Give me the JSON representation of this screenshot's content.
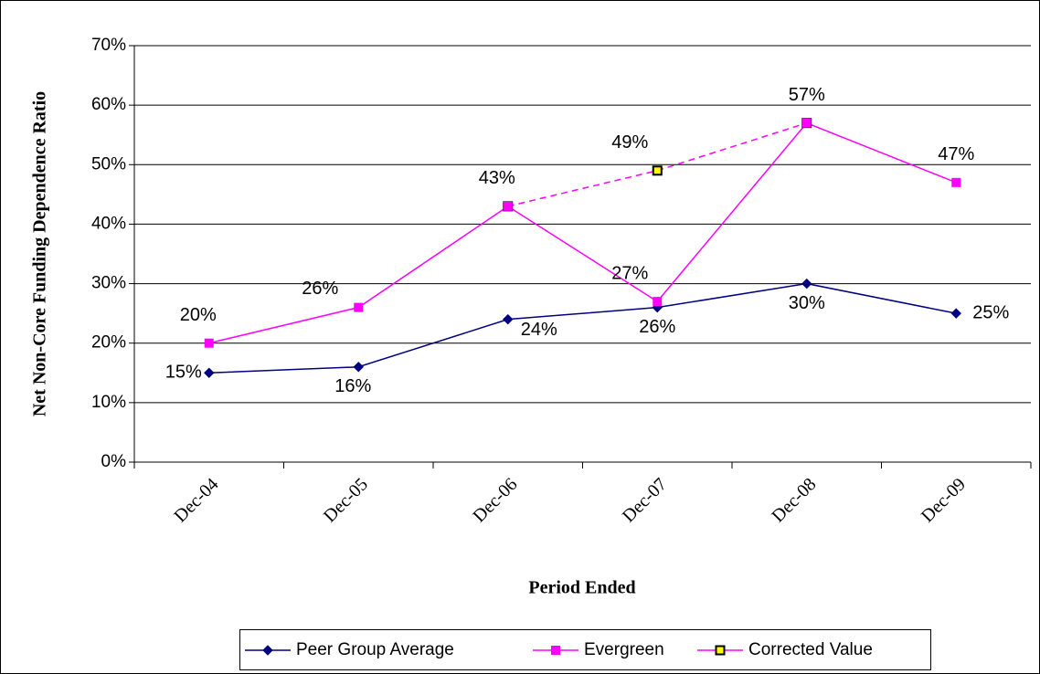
{
  "chart_data": {
    "type": "line",
    "y_label": "Net Non-Core Funding Dependence Ratio",
    "x_label": "Period Ended",
    "categories": [
      "Dec-04",
      "Dec-05",
      "Dec-06",
      "Dec-07",
      "Dec-08",
      "Dec-09"
    ],
    "series": [
      {
        "name": "Peer Group Average",
        "color": "#000080",
        "marker": "diamond",
        "values": [
          15,
          16,
          24,
          26,
          30,
          25
        ],
        "value_labels": [
          "15%",
          "16%",
          "24%",
          "26%",
          "30%",
          "25%"
        ]
      },
      {
        "name": "Evergreen",
        "color": "#ff00ff",
        "marker": "square",
        "values": [
          20,
          26,
          43,
          27,
          57,
          47
        ],
        "value_labels": [
          "20%",
          "26%",
          "43%",
          "27%",
          "57%",
          "47%"
        ]
      },
      {
        "name": "Corrected Value",
        "color": "#ff00ff",
        "marker": "square",
        "marker_fill": "#ffff00",
        "marker_edge": "#000000",
        "dashed": true,
        "values": [
          null,
          null,
          43,
          49,
          57,
          null
        ],
        "value_labels": [
          null,
          null,
          null,
          "49%",
          null,
          null
        ]
      }
    ],
    "ylim": [
      0,
      70
    ],
    "yticks": [
      {
        "value": 0,
        "label": "0%"
      },
      {
        "value": 10,
        "label": "10%"
      },
      {
        "value": 20,
        "label": "20%"
      },
      {
        "value": 30,
        "label": "30%"
      },
      {
        "value": 40,
        "label": "40%"
      },
      {
        "value": 50,
        "label": "50%"
      },
      {
        "value": 60,
        "label": "60%"
      },
      {
        "value": 70,
        "label": "70%"
      }
    ],
    "grid": true,
    "legend": "bottom"
  }
}
